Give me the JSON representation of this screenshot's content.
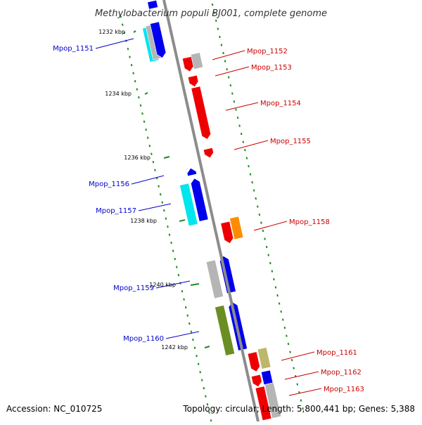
{
  "title": "Methylobacterium populi BJ001, complete genome",
  "footer": {
    "accession": "Accession: NC_010725",
    "summary": "Topology: circular; Length: 5,800,441 bp; Genes: 5,388"
  },
  "colors": {
    "backbone": "#8c8c8c",
    "tick": "#228b22",
    "forward_label": "#0000cc",
    "reverse_label": "#cc0000",
    "blue": "#0000ee",
    "cyan": "#00e5ee",
    "red": "#ee0000",
    "gray": "#b5b5b5",
    "orange": "#ff8c00",
    "olive": "#6b8e23",
    "khaki": "#bdb76b"
  },
  "kbp_labels": [
    "1232 kbp",
    "1234 kbp",
    "1236 kbp",
    "1238 kbp",
    "1240 kbp",
    "1242 kbp"
  ],
  "gene_labels": [
    {
      "id": "g1151",
      "label": "Mpop_1151",
      "strand": "forward"
    },
    {
      "id": "g1152",
      "label": "Mpop_1152",
      "strand": "reverse"
    },
    {
      "id": "g1153",
      "label": "Mpop_1153",
      "strand": "reverse"
    },
    {
      "id": "g1154",
      "label": "Mpop_1154",
      "strand": "reverse"
    },
    {
      "id": "g1155",
      "label": "Mpop_1155",
      "strand": "reverse"
    },
    {
      "id": "g1156",
      "label": "Mpop_1156",
      "strand": "forward"
    },
    {
      "id": "g1157",
      "label": "Mpop_1157",
      "strand": "forward"
    },
    {
      "id": "g1158",
      "label": "Mpop_1158",
      "strand": "reverse"
    },
    {
      "id": "g1159",
      "label": "Mpop_1159",
      "strand": "forward"
    },
    {
      "id": "g1160",
      "label": "Mpop_1160",
      "strand": "forward"
    },
    {
      "id": "g1161",
      "label": "Mpop_1161",
      "strand": "reverse"
    },
    {
      "id": "g1162",
      "label": "Mpop_1162",
      "strand": "reverse"
    },
    {
      "id": "g1163",
      "label": "Mpop_1163",
      "strand": "reverse"
    }
  ]
}
